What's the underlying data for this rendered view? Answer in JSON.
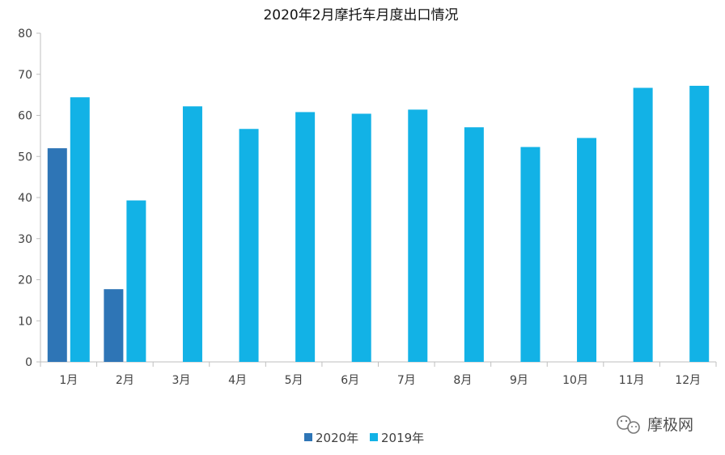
{
  "chart_data": {
    "type": "bar",
    "title": "2020年2月摩托车月度出口情况",
    "categories": [
      "1月",
      "2月",
      "3月",
      "4月",
      "5月",
      "6月",
      "7月",
      "8月",
      "9月",
      "10月",
      "11月",
      "12月"
    ],
    "series": [
      {
        "name": "2020年",
        "color": "#2e75b6",
        "values": [
          52,
          17.7,
          null,
          null,
          null,
          null,
          null,
          null,
          null,
          null,
          null,
          null
        ]
      },
      {
        "name": "2019年",
        "color": "#12b2e6",
        "values": [
          64.4,
          39.3,
          62.2,
          56.7,
          60.8,
          60.4,
          61.4,
          57.1,
          52.3,
          54.5,
          66.7,
          67.2
        ]
      }
    ],
    "ylim": [
      0,
      80
    ],
    "yticks": [
      "0",
      "10",
      "20",
      "30",
      "40",
      "50",
      "60",
      "70",
      "80"
    ],
    "grid": false,
    "legend": "bottom-center"
  },
  "watermark": {
    "text": "摩极网",
    "icon": "wechat-icon"
  }
}
